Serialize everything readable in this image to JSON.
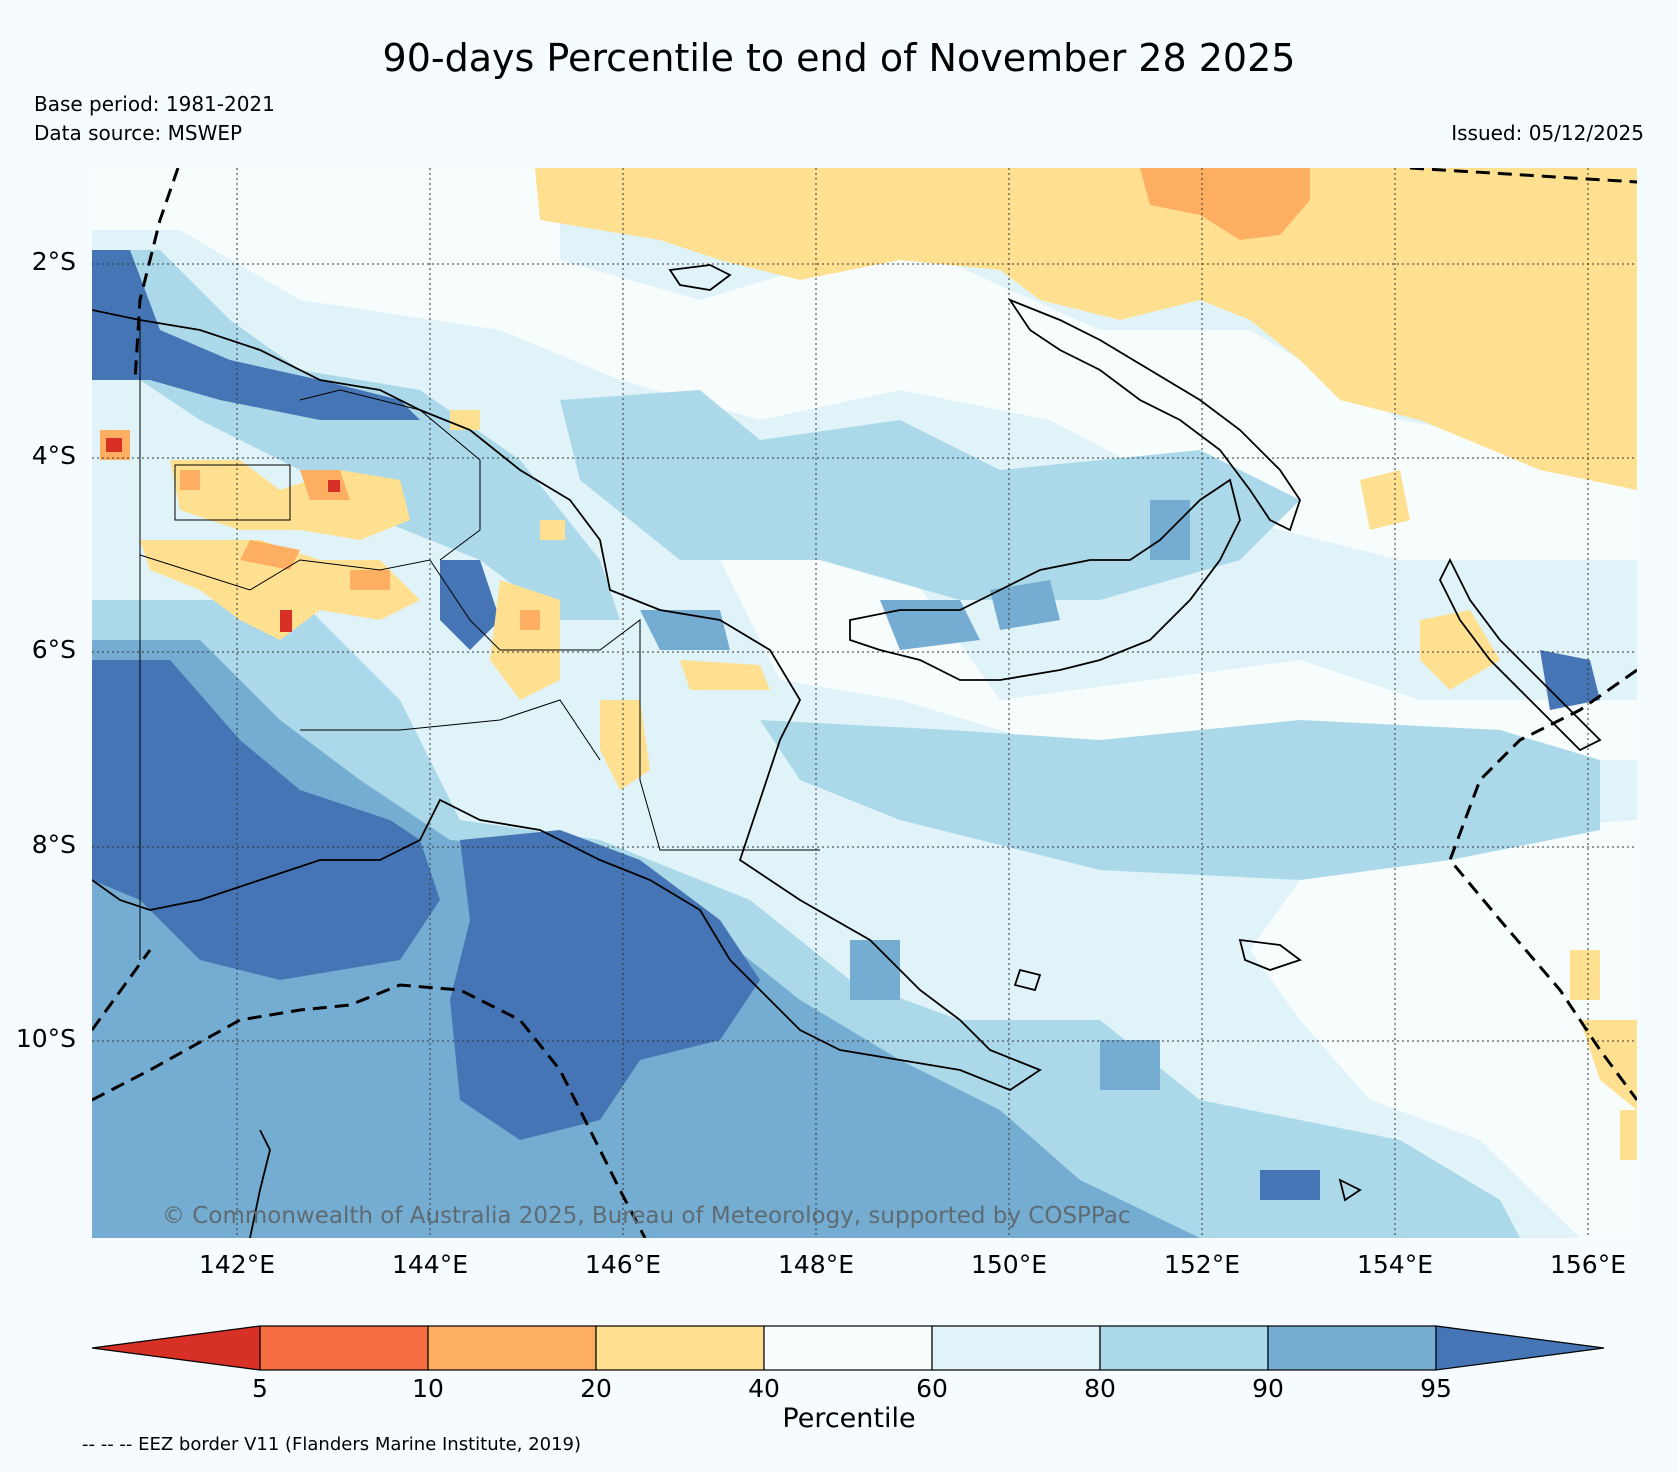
{
  "title": "90-days Percentile to end of November 28 2025",
  "base_period": "Base period: 1981-2021",
  "data_source": "Data source: MSWEP",
  "issued": "Issued: 05/12/2025",
  "copyright": "© Commonwealth of Australia 2025, Bureau of Meteorology, supported by COSPPac",
  "lat_labels": [
    "2°S",
    "4°S",
    "6°S",
    "8°S",
    "10°S"
  ],
  "lon_labels": [
    "142°E",
    "144°E",
    "146°E",
    "148°E",
    "150°E",
    "152°E",
    "154°E",
    "156°E"
  ],
  "colorbar": {
    "title": "Percentile",
    "ticks": [
      "5",
      "10",
      "20",
      "40",
      "60",
      "80",
      "90",
      "95"
    ],
    "colors": [
      "#d73027",
      "#f46d43",
      "#fdae61",
      "#fee090",
      "#f7fcfd",
      "#e0f3f8",
      "#abd9e9",
      "#74add1",
      "#4575b4"
    ]
  },
  "eez_note": "-- -- -- EEZ border V11 (Flanders Marine Institute, 2019)"
}
